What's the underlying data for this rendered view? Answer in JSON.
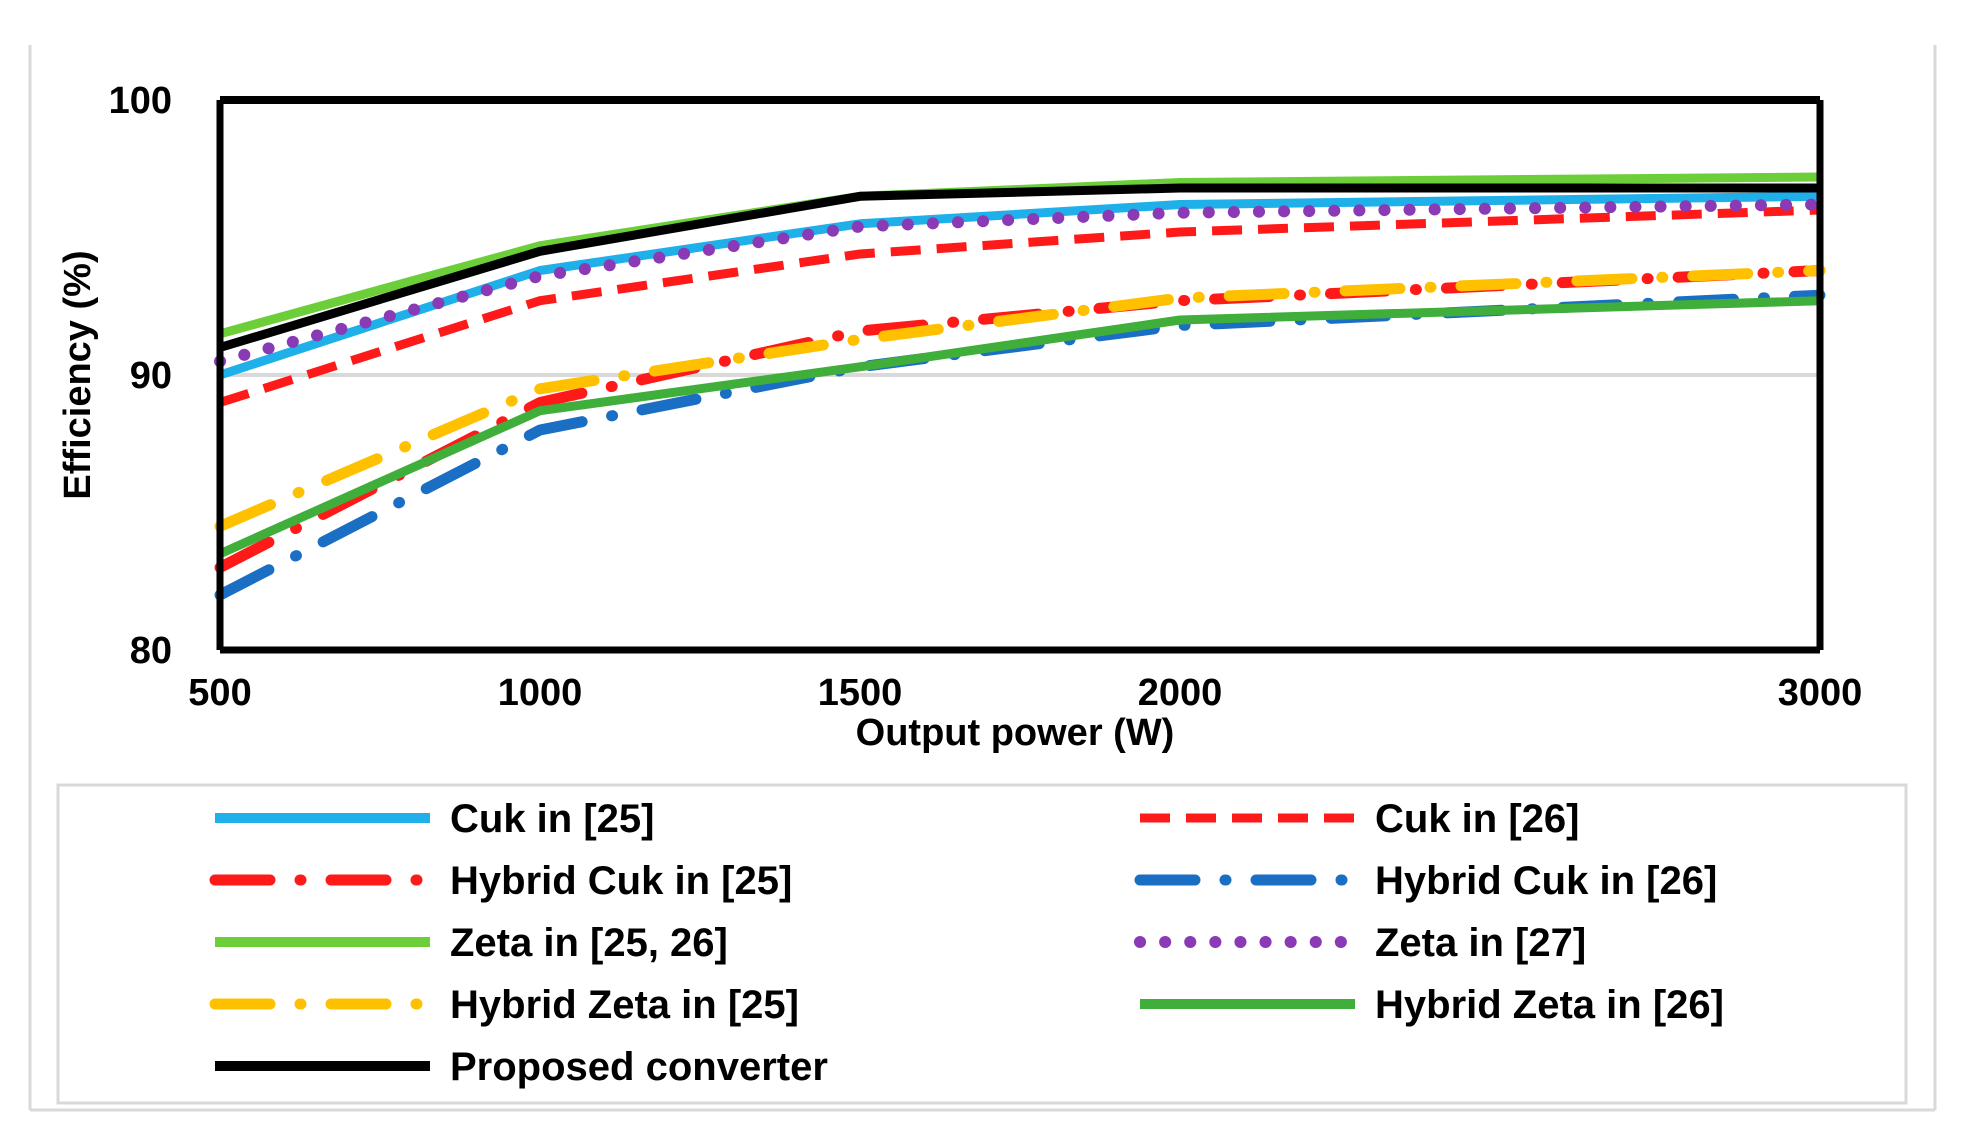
{
  "chart_data": {
    "type": "line",
    "title": "",
    "xlabel": "Output power (W)",
    "ylabel": "Efficiency (%)",
    "x": [
      500,
      1000,
      1500,
      2000,
      3000
    ],
    "xticks": [
      "500",
      "1000",
      "1500",
      "2000",
      "3000"
    ],
    "xlim": [
      500,
      3000
    ],
    "yticks": [
      "80",
      "90",
      "100"
    ],
    "ylim": [
      80,
      100
    ],
    "grid": true,
    "legend_position": "bottom",
    "series": [
      {
        "name": "Cuk in [25]",
        "values": [
          90.0,
          93.8,
          95.5,
          96.2,
          96.5
        ],
        "color": "#1fb0ea",
        "style": "solid"
      },
      {
        "name": "Cuk in [26]",
        "values": [
          89.0,
          92.7,
          94.4,
          95.2,
          96.0
        ],
        "color": "#ff1a1a",
        "style": "dash"
      },
      {
        "name": "Hybrid Cuk in [25]",
        "values": [
          83.0,
          89.0,
          91.6,
          92.7,
          93.8
        ],
        "color": "#ff1a1a",
        "style": "longdashdot"
      },
      {
        "name": "Hybrid Cuk in [26]",
        "values": [
          82.0,
          88.0,
          90.3,
          91.8,
          92.9
        ],
        "color": "#1a6fc4",
        "style": "longdashdot"
      },
      {
        "name": "Zeta in [25, 26]",
        "values": [
          91.5,
          94.7,
          96.5,
          97.0,
          97.2
        ],
        "color": "#6ccf3a",
        "style": "solid"
      },
      {
        "name": "Zeta in [27]",
        "values": [
          90.5,
          93.6,
          95.4,
          95.9,
          96.2
        ],
        "color": "#8a3ab5",
        "style": "dot"
      },
      {
        "name": "Hybrid Zeta in [25]",
        "values": [
          84.5,
          89.5,
          91.3,
          92.8,
          93.8
        ],
        "color": "#ffc000",
        "style": "longdashdot"
      },
      {
        "name": "Hybrid Zeta in [26]",
        "values": [
          83.5,
          88.7,
          90.3,
          92.0,
          92.7
        ],
        "color": "#3fae3a",
        "style": "solid"
      },
      {
        "name": "Proposed converter",
        "values": [
          91.0,
          94.5,
          96.5,
          96.8,
          96.8
        ],
        "color": "#000000",
        "style": "solid"
      }
    ]
  }
}
